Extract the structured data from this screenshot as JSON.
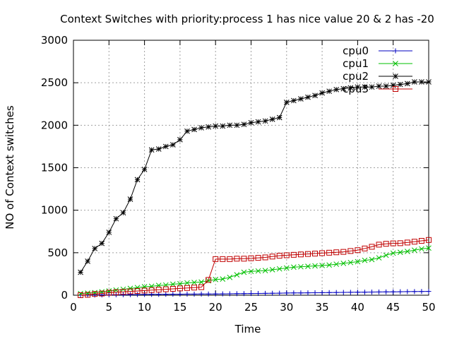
{
  "chart_data": {
    "type": "line",
    "title": "Context Switches with priority:process 1 has nice value 20 & 2 has -20",
    "xlabel": "Time",
    "ylabel": "NO of Context switches",
    "xlim": [
      0,
      50
    ],
    "ylim": [
      0,
      3000
    ],
    "xticks": [
      0,
      5,
      10,
      15,
      20,
      25,
      30,
      35,
      40,
      45,
      50
    ],
    "yticks": [
      0,
      500,
      1000,
      1500,
      2000,
      2500,
      3000
    ],
    "grid": true,
    "legend_position": "top-right",
    "x": [
      1,
      2,
      3,
      4,
      5,
      6,
      7,
      8,
      9,
      10,
      11,
      12,
      13,
      14,
      15,
      16,
      17,
      18,
      19,
      20,
      21,
      22,
      23,
      24,
      25,
      26,
      27,
      28,
      29,
      30,
      31,
      32,
      33,
      34,
      35,
      36,
      37,
      38,
      39,
      40,
      41,
      42,
      43,
      44,
      45,
      46,
      47,
      48,
      49,
      50
    ],
    "series": [
      {
        "name": "cpu0",
        "color": "#0000c0",
        "marker": "plus",
        "values": [
          0,
          1,
          2,
          3,
          4,
          5,
          6,
          7,
          8,
          9,
          10,
          10,
          11,
          12,
          12,
          13,
          13,
          14,
          14,
          15,
          16,
          17,
          18,
          19,
          20,
          21,
          22,
          23,
          24,
          26,
          27,
          27,
          28,
          29,
          30,
          31,
          32,
          33,
          34,
          35,
          36,
          37,
          38,
          39,
          40,
          41,
          42,
          43,
          44,
          45
        ]
      },
      {
        "name": "cpu1",
        "color": "#00c000",
        "marker": "cross",
        "values": [
          20,
          25,
          30,
          40,
          50,
          60,
          70,
          80,
          90,
          100,
          105,
          115,
          120,
          130,
          135,
          145,
          150,
          155,
          170,
          185,
          190,
          210,
          240,
          270,
          280,
          285,
          290,
          300,
          310,
          320,
          330,
          335,
          340,
          345,
          350,
          355,
          365,
          375,
          385,
          395,
          410,
          420,
          440,
          470,
          495,
          505,
          515,
          530,
          545,
          555
        ]
      },
      {
        "name": "cpu2",
        "color": "#000000",
        "marker": "star",
        "values": [
          270,
          400,
          550,
          610,
          740,
          900,
          970,
          1130,
          1360,
          1480,
          1710,
          1720,
          1750,
          1770,
          1830,
          1930,
          1950,
          1970,
          1980,
          1990,
          1990,
          2000,
          2000,
          2010,
          2030,
          2040,
          2050,
          2070,
          2090,
          2270,
          2290,
          2310,
          2330,
          2350,
          2380,
          2400,
          2420,
          2430,
          2440,
          2450,
          2450,
          2450,
          2460,
          2460,
          2470,
          2480,
          2490,
          2510,
          2510,
          2510
        ]
      },
      {
        "name": "cpu3",
        "color": "#c00000",
        "marker": "square",
        "values": [
          0,
          5,
          15,
          20,
          30,
          35,
          40,
          45,
          50,
          55,
          60,
          65,
          70,
          75,
          80,
          85,
          90,
          95,
          180,
          425,
          425,
          425,
          430,
          430,
          435,
          440,
          445,
          455,
          465,
          470,
          475,
          480,
          485,
          490,
          495,
          500,
          505,
          510,
          520,
          530,
          550,
          570,
          595,
          605,
          610,
          612,
          620,
          630,
          640,
          650
        ]
      }
    ]
  }
}
